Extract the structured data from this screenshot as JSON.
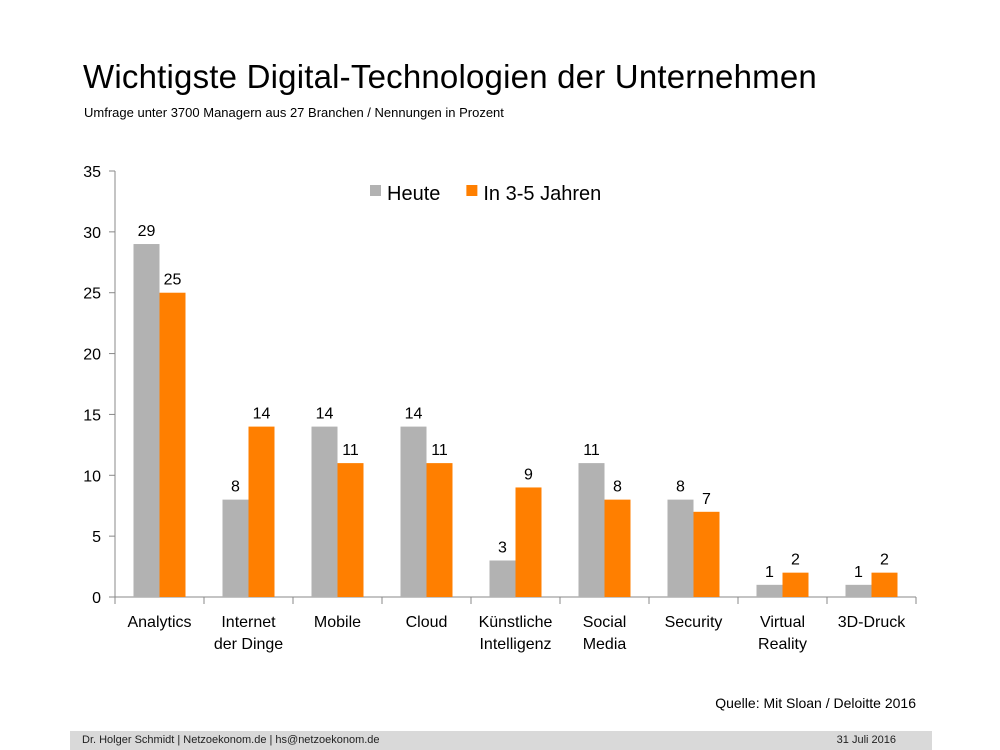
{
  "header": {
    "title": "Wichtigste Digital-Technologien der Unternehmen",
    "subtitle": "Umfrage unter 3700 Managern aus 27 Branchen / Nennungen in Prozent"
  },
  "colors": {
    "heute": "#b2b2b2",
    "zukunft": "#ff7f00",
    "axis": "#888888"
  },
  "chart_data": {
    "type": "bar",
    "title": "Wichtigste Digital-Technologien der Unternehmen",
    "xlabel": "",
    "ylabel": "",
    "ylim": [
      0,
      35
    ],
    "yticks": [
      0,
      5,
      10,
      15,
      20,
      25,
      30,
      35
    ],
    "grid": false,
    "legend": "top-center",
    "categories": [
      [
        "Analytics"
      ],
      [
        "Internet",
        "der Dinge"
      ],
      [
        "Mobile"
      ],
      [
        "Cloud"
      ],
      [
        "Künstliche",
        "Intelligenz"
      ],
      [
        "Social",
        "Media"
      ],
      [
        "Security"
      ],
      [
        "Virtual",
        "Reality"
      ],
      [
        "3D-Druck"
      ]
    ],
    "series": [
      {
        "name": "Heute",
        "color": "#b2b2b2",
        "values": [
          29,
          8,
          14,
          14,
          3,
          11,
          8,
          1,
          1
        ]
      },
      {
        "name": "In 3-5 Jahren",
        "color": "#ff7f00",
        "values": [
          25,
          14,
          11,
          11,
          9,
          8,
          7,
          2,
          2
        ]
      }
    ]
  },
  "source": "Quelle: Mit Sloan / Deloitte 2016",
  "footer": {
    "left": "Dr. Holger Schmidt  |  Netzoekonom.de   |   hs@netzoekonom.de",
    "date": "31 Juli 2016"
  }
}
